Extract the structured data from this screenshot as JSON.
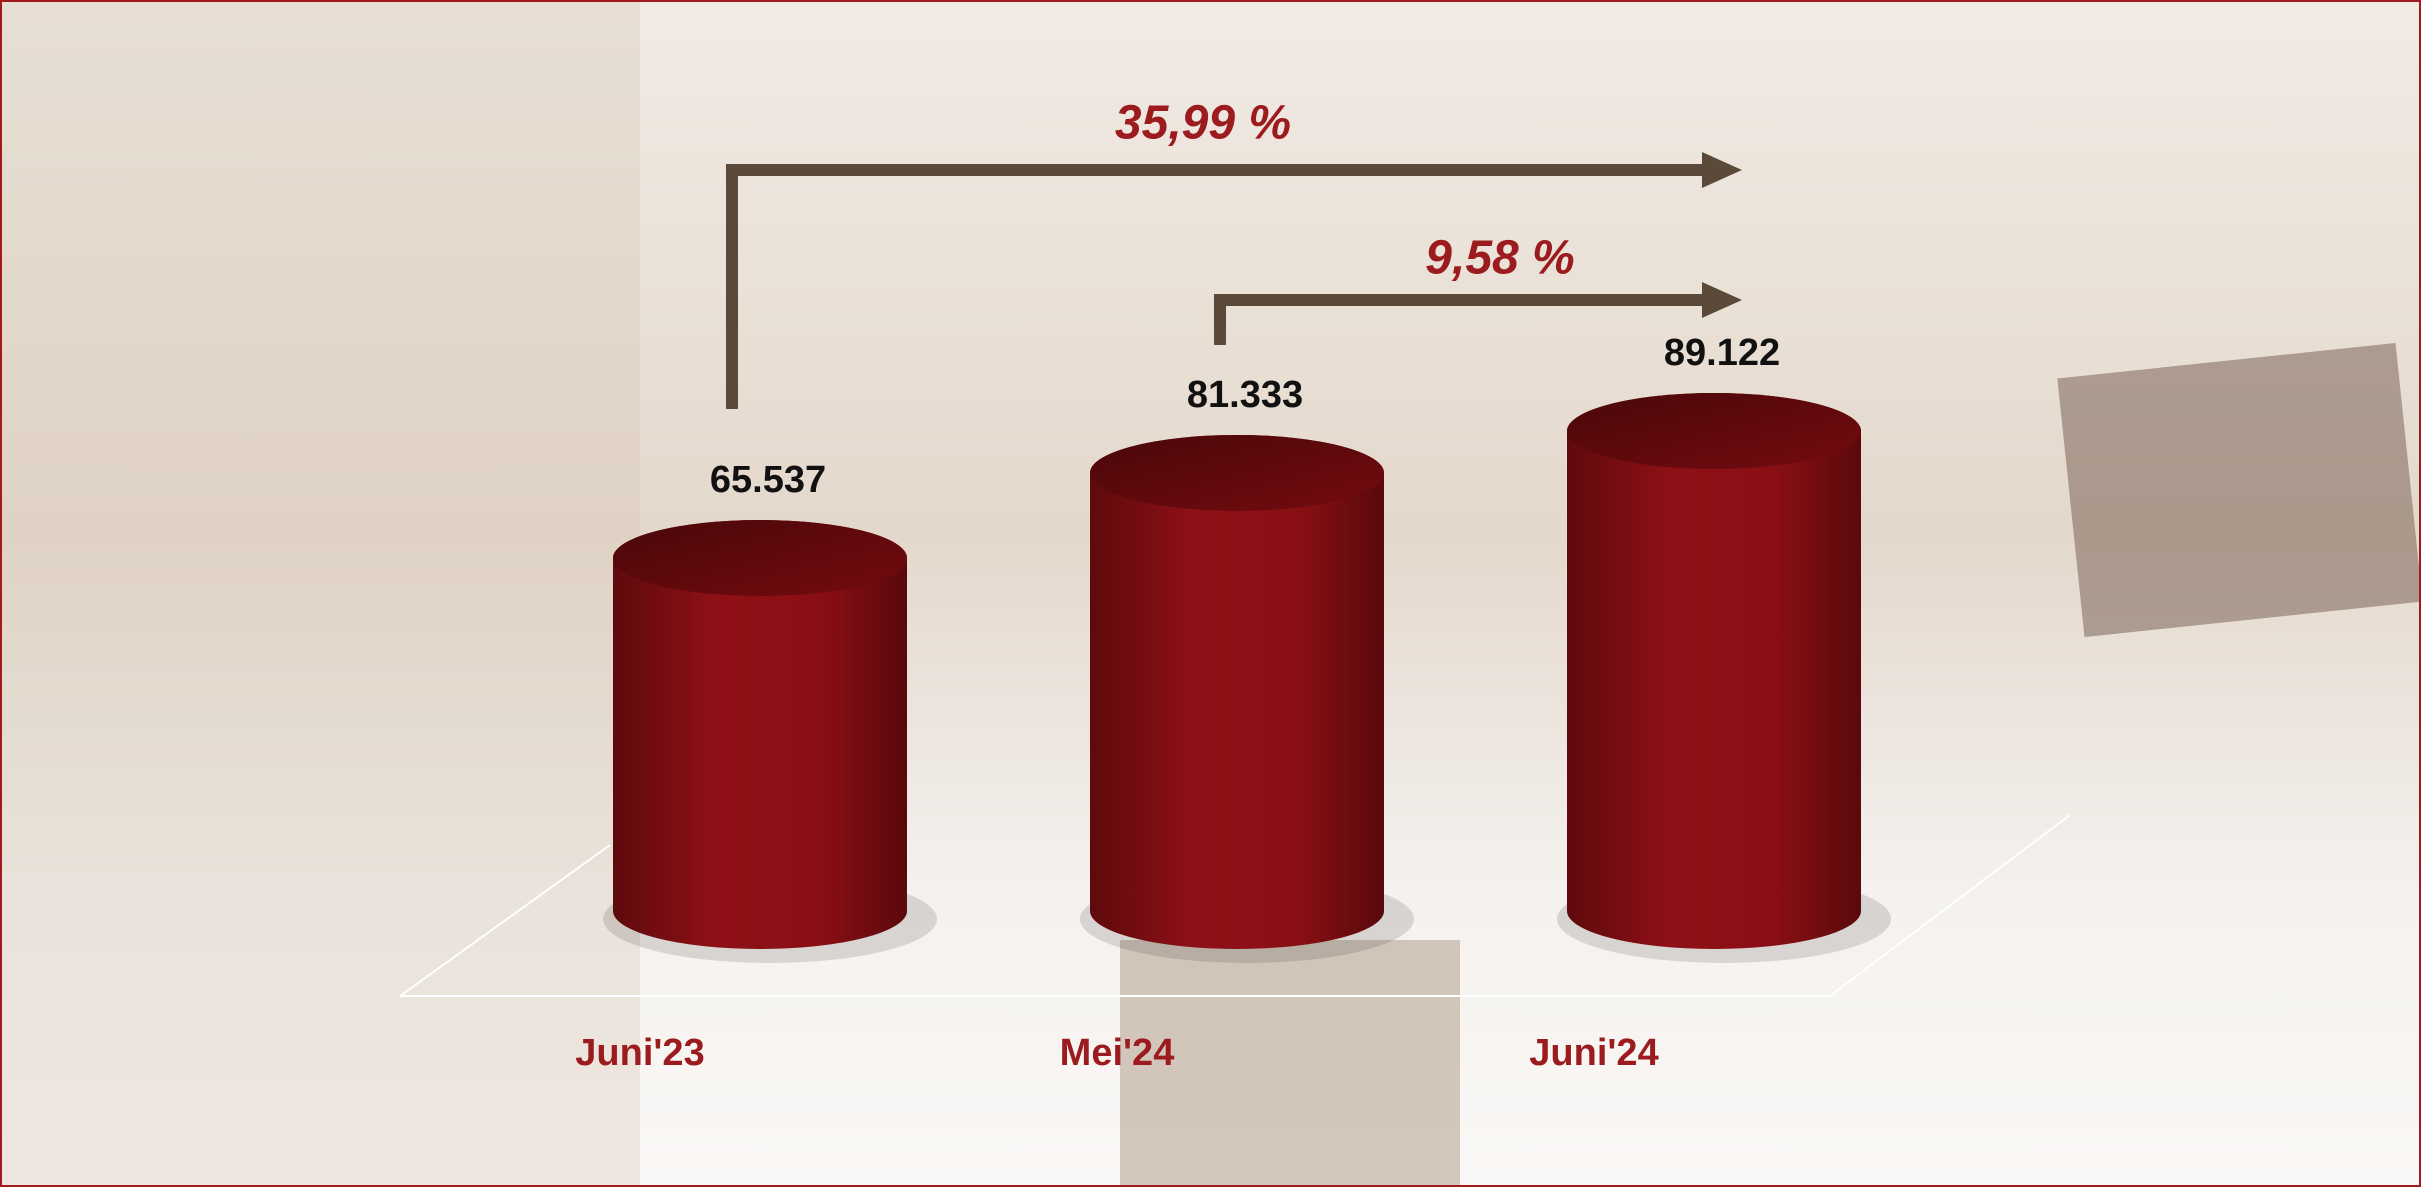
{
  "chart_data": {
    "type": "cylinder",
    "categories": [
      "Juni'23",
      "Mei'24",
      "Juni'24"
    ],
    "values": [
      65537,
      81333,
      89122
    ],
    "value_labels": [
      "65.537",
      "81.333",
      "89.122"
    ],
    "color": "#8b0f14",
    "annotations": [
      "35,99 %",
      "9,58 %"
    ]
  }
}
